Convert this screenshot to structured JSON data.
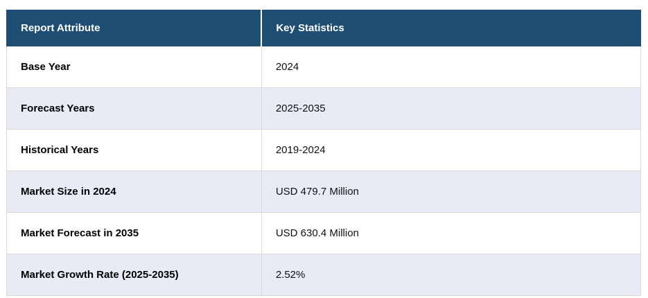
{
  "table": {
    "name": "report-summary-table",
    "columns": [
      {
        "label": "Report Attribute"
      },
      {
        "label": "Key Statistics"
      }
    ],
    "rows": [
      {
        "attribute": "Base Year",
        "value": "2024"
      },
      {
        "attribute": "Forecast Years",
        "value": "2025-2035"
      },
      {
        "attribute": "Historical Years",
        "value": "2019-2024"
      },
      {
        "attribute": "Market Size in 2024",
        "value": "USD 479.7 Million"
      },
      {
        "attribute": "Market Forecast in 2035",
        "value": "USD 630.4 Million"
      },
      {
        "attribute": "Market Growth Rate (2025-2035)",
        "value": "2.52%"
      }
    ],
    "colors": {
      "header_bg": "#1f4e74",
      "header_text": "#ffffff",
      "row_bg": "#ffffff",
      "row_alt_bg": "#e8eaf5",
      "border": "#d9d9d9"
    }
  }
}
